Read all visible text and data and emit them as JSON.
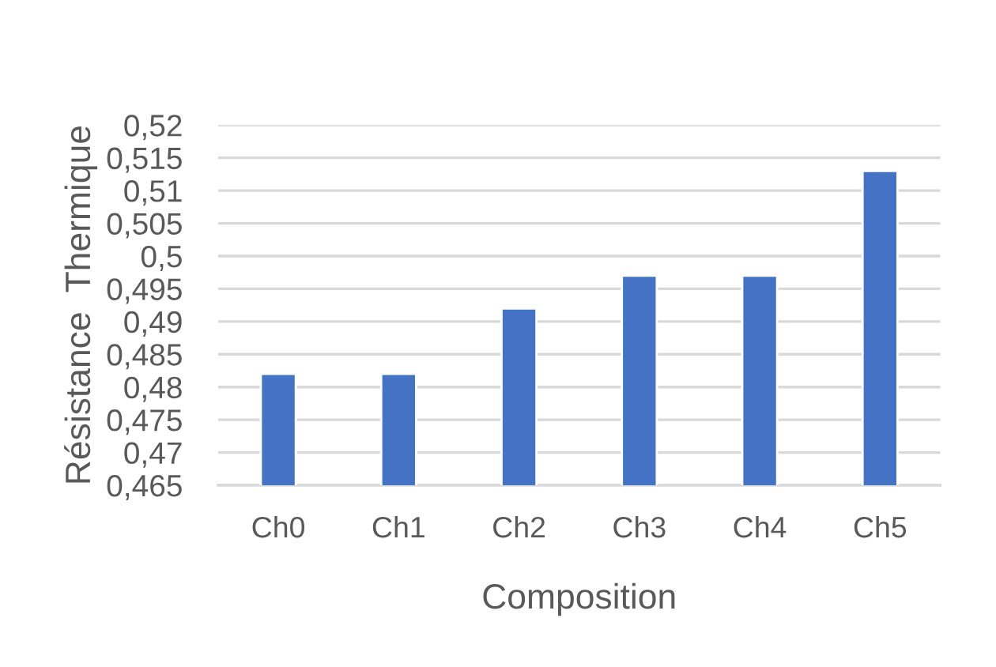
{
  "chart_data": {
    "type": "bar",
    "xlabel": "Composition",
    "ylabel": "Résistance  Thermique",
    "categories": [
      "Ch0",
      "Ch1",
      "Ch2",
      "Ch3",
      "Ch4",
      "Ch5"
    ],
    "values": [
      0.482,
      0.482,
      0.492,
      0.497,
      0.497,
      0.513
    ],
    "color": "#4472c4",
    "ylim": [
      0.465,
      0.52
    ],
    "yticks": [
      {
        "value": 0.465,
        "label": "0,465"
      },
      {
        "value": 0.47,
        "label": "0,47"
      },
      {
        "value": 0.475,
        "label": "0,475"
      },
      {
        "value": 0.48,
        "label": "0,48"
      },
      {
        "value": 0.485,
        "label": "0,485"
      },
      {
        "value": 0.49,
        "label": "0,49"
      },
      {
        "value": 0.495,
        "label": "0,495"
      },
      {
        "value": 0.5,
        "label": "0,5"
      },
      {
        "value": 0.505,
        "label": "0,505"
      },
      {
        "value": 0.51,
        "label": "0,51"
      },
      {
        "value": 0.515,
        "label": "0,515"
      },
      {
        "value": 0.52,
        "label": "0,52"
      }
    ],
    "grid": "y"
  }
}
